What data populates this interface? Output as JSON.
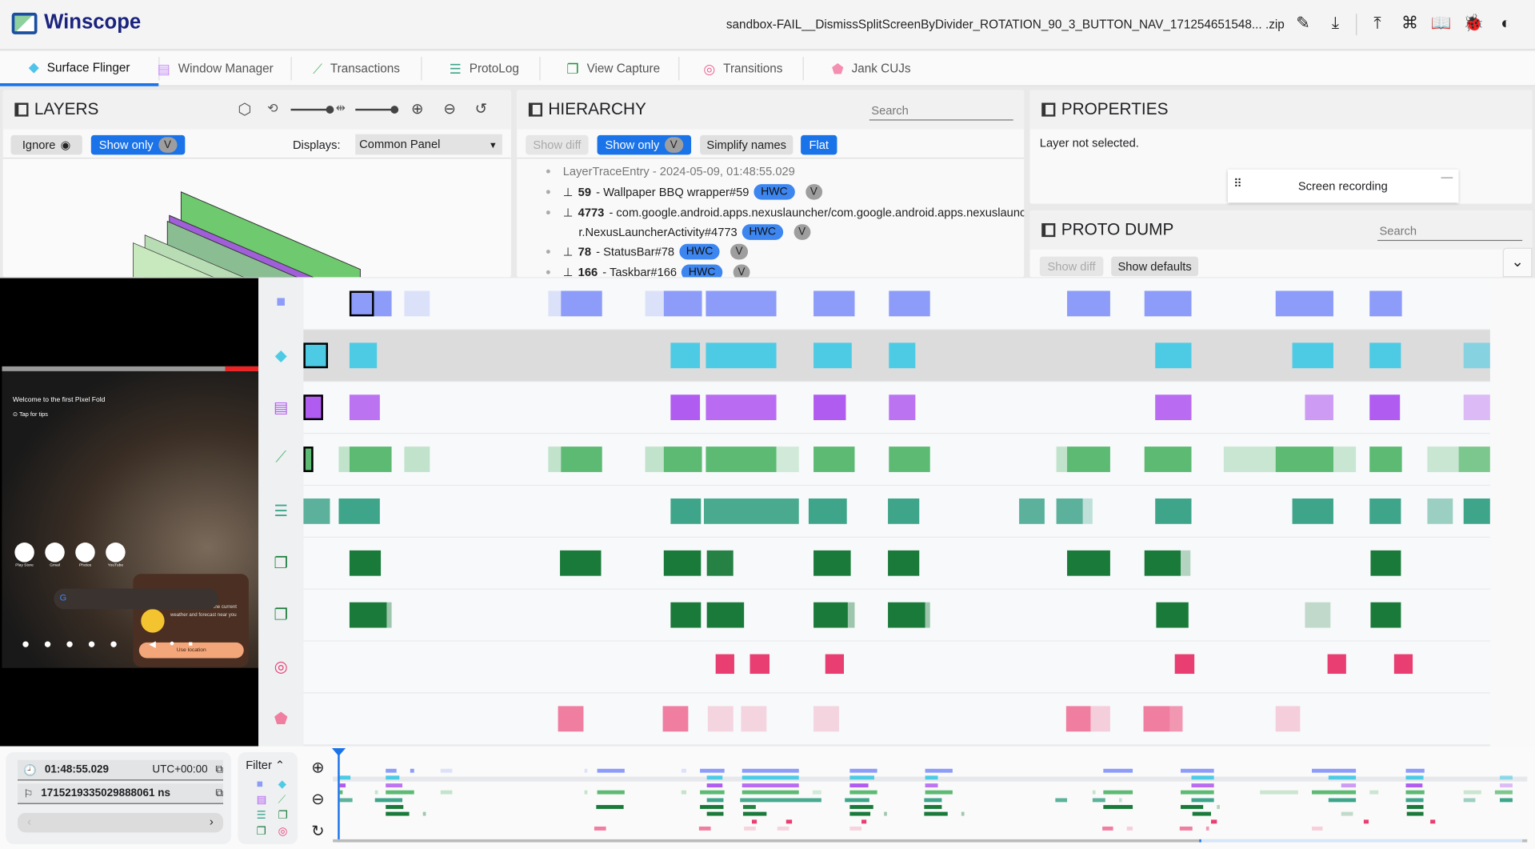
{
  "app": {
    "title": "Winscope",
    "file_name": "sandbox-FAIL__DismissSplitScreenByDivider_ROTATION_90_3_BUTTON_NAV_171254651548... .zip",
    "header_icons": [
      "edit-icon",
      "download-icon",
      "upload-icon",
      "shortcuts-icon",
      "docs-icon",
      "bug-icon",
      "theme-icon"
    ]
  },
  "tabs": [
    {
      "label": "Surface Flinger",
      "icon": "layers-icon",
      "color": "#4fc3e8",
      "active": true
    },
    {
      "label": "Window Manager",
      "icon": "window-icon",
      "color": "#c58af9"
    },
    {
      "label": "Transactions",
      "icon": "timeline-icon",
      "color": "#5cba72"
    },
    {
      "label": "ProtoLog",
      "icon": "list-icon",
      "color": "#3fa58a"
    },
    {
      "label": "View Capture",
      "icon": "copy-icon",
      "color": "#1e8e3e"
    },
    {
      "label": "Transitions",
      "icon": "rings-icon",
      "color": "#f06292"
    },
    {
      "label": "Jank CUJs",
      "icon": "label-icon",
      "color": "#f48fb1"
    }
  ],
  "layers": {
    "title": "LAYERS",
    "ignore": "Ignore",
    "show_only": "Show only",
    "v": "V",
    "displays_label": "Displays:",
    "displays_value": "Common Panel"
  },
  "hierarchy": {
    "title": "HIERARCHY",
    "search_placeholder": "Search",
    "show_diff": "Show diff",
    "show_only": "Show only",
    "v": "V",
    "simplify": "Simplify names",
    "flat": "Flat",
    "root": "LayerTraceEntry - 2024-05-09, 01:48:55.029",
    "items": [
      {
        "id": "59",
        "name": " - Wallpaper BBQ wrapper#59",
        "hwc": "HWC",
        "v": "V"
      },
      {
        "id": "4773",
        "name": " - com.google.android.apps.nexuslauncher/com.google.android.apps.nexuslaunche",
        "name2": "r.NexusLauncherActivity#4773",
        "hwc": "HWC",
        "v": "V"
      },
      {
        "id": "78",
        "name": " - StatusBar#78",
        "hwc": "HWC",
        "v": "V"
      },
      {
        "id": "166",
        "name": " - Taskbar#166",
        "hwc": "HWC",
        "v": "V"
      }
    ]
  },
  "properties": {
    "title": "PROPERTIES",
    "empty": "Layer not selected.",
    "screen_recording": "Screen recording"
  },
  "proto_dump": {
    "title": "PROTO DUMP",
    "search_placeholder": "Search",
    "show_diff": "Show diff",
    "show_defaults": "Show defaults"
  },
  "phone": {
    "welcome": "Welcome to the first Pixel Fold",
    "tips": "Tap for tips",
    "weather": "Use location to see the current weather and forecast near you",
    "use_location": "Use location",
    "apps": [
      "Play Store",
      "Gmail",
      "Photos",
      "YouTube"
    ]
  },
  "timeline": {
    "rows": [
      {
        "trace": "Screen recording",
        "icon": "video-icon",
        "color": "#8c9cf8"
      },
      {
        "trace": "Surface Flinger",
        "icon": "layers-icon",
        "color": "#4ecbe4"
      },
      {
        "trace": "Window Manager",
        "icon": "window-icon",
        "color": "#b15cf0"
      },
      {
        "trace": "Transactions",
        "icon": "timeline-icon",
        "color": "#5cba72"
      },
      {
        "trace": "ProtoLog",
        "icon": "list-icon",
        "color": "#3fa58a"
      },
      {
        "trace": "View Capture",
        "icon": "copy-icon",
        "color": "#1a7a3a"
      },
      {
        "trace": "View Capture",
        "icon": "copy-icon",
        "color": "#1a7a3a"
      },
      {
        "trace": "Transitions",
        "icon": "rings-icon",
        "color": "#e83e72"
      },
      {
        "trace": "Jank CUJs",
        "icon": "label-icon",
        "color": "#f07ea0"
      }
    ],
    "selected_row": 1
  },
  "bottom": {
    "time": "01:48:55.029",
    "timezone": "UTC+00:00",
    "ns": "1715219335029888061 ns",
    "filter": "Filter"
  }
}
